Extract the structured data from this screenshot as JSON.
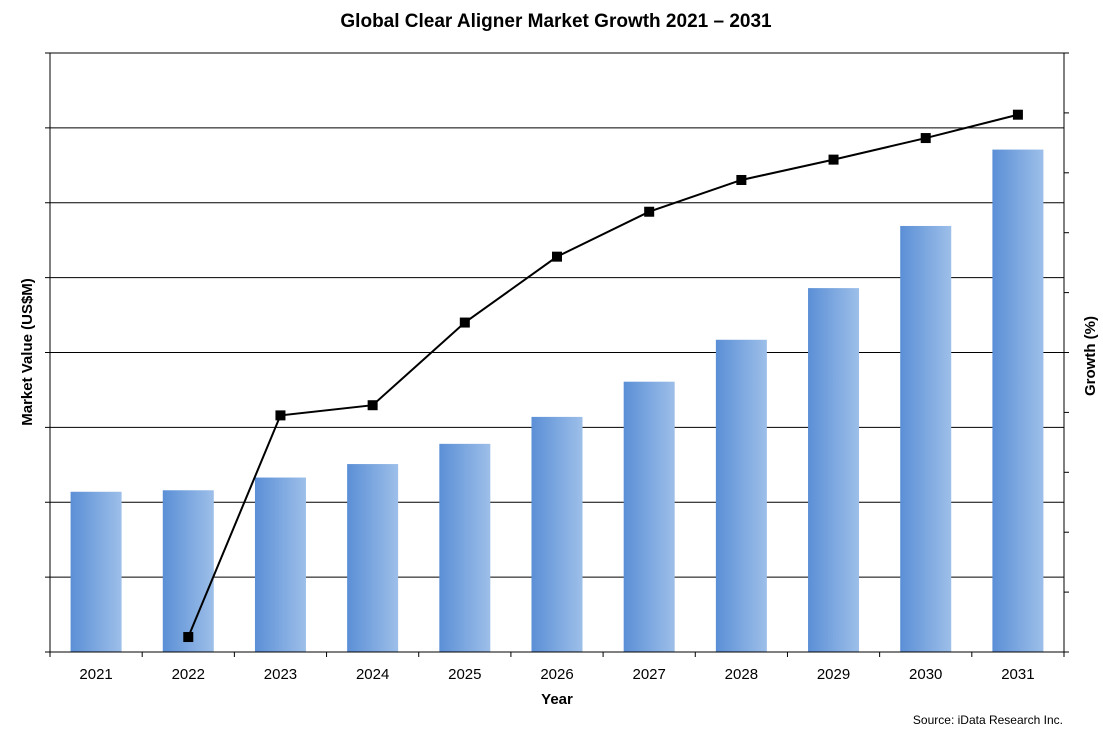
{
  "chart_data": {
    "type": "bar",
    "title": "Global Clear Aligner Market Growth 2021 – 2031",
    "xlabel": "Year",
    "ylabel": "Market Value (US$M)",
    "y2label": "Growth (%)",
    "source": "Source: iData Research Inc.",
    "categories": [
      "2021",
      "2022",
      "2023",
      "2024",
      "2025",
      "2026",
      "2027",
      "2028",
      "2029",
      "2030",
      "2031"
    ],
    "ylim": [
      0,
      8
    ],
    "y2lim": [
      0,
      10
    ],
    "grid": true,
    "y_tick_labels_shown": false,
    "series": [
      {
        "type": "bar",
        "axis": "left",
        "values": [
          2.14,
          2.16,
          2.33,
          2.51,
          2.78,
          3.14,
          3.61,
          4.17,
          4.86,
          5.69,
          6.71
        ]
      },
      {
        "type": "line",
        "axis": "right",
        "marker": "square",
        "values": [
          null,
          0.25,
          3.95,
          4.12,
          5.5,
          6.6,
          7.35,
          7.88,
          8.22,
          8.58,
          8.97
        ]
      }
    ],
    "colors": {
      "bar_dark": "#5b8fd6",
      "bar_light": "#9dbfe9",
      "line": "#000000",
      "grid": "#000000"
    }
  }
}
